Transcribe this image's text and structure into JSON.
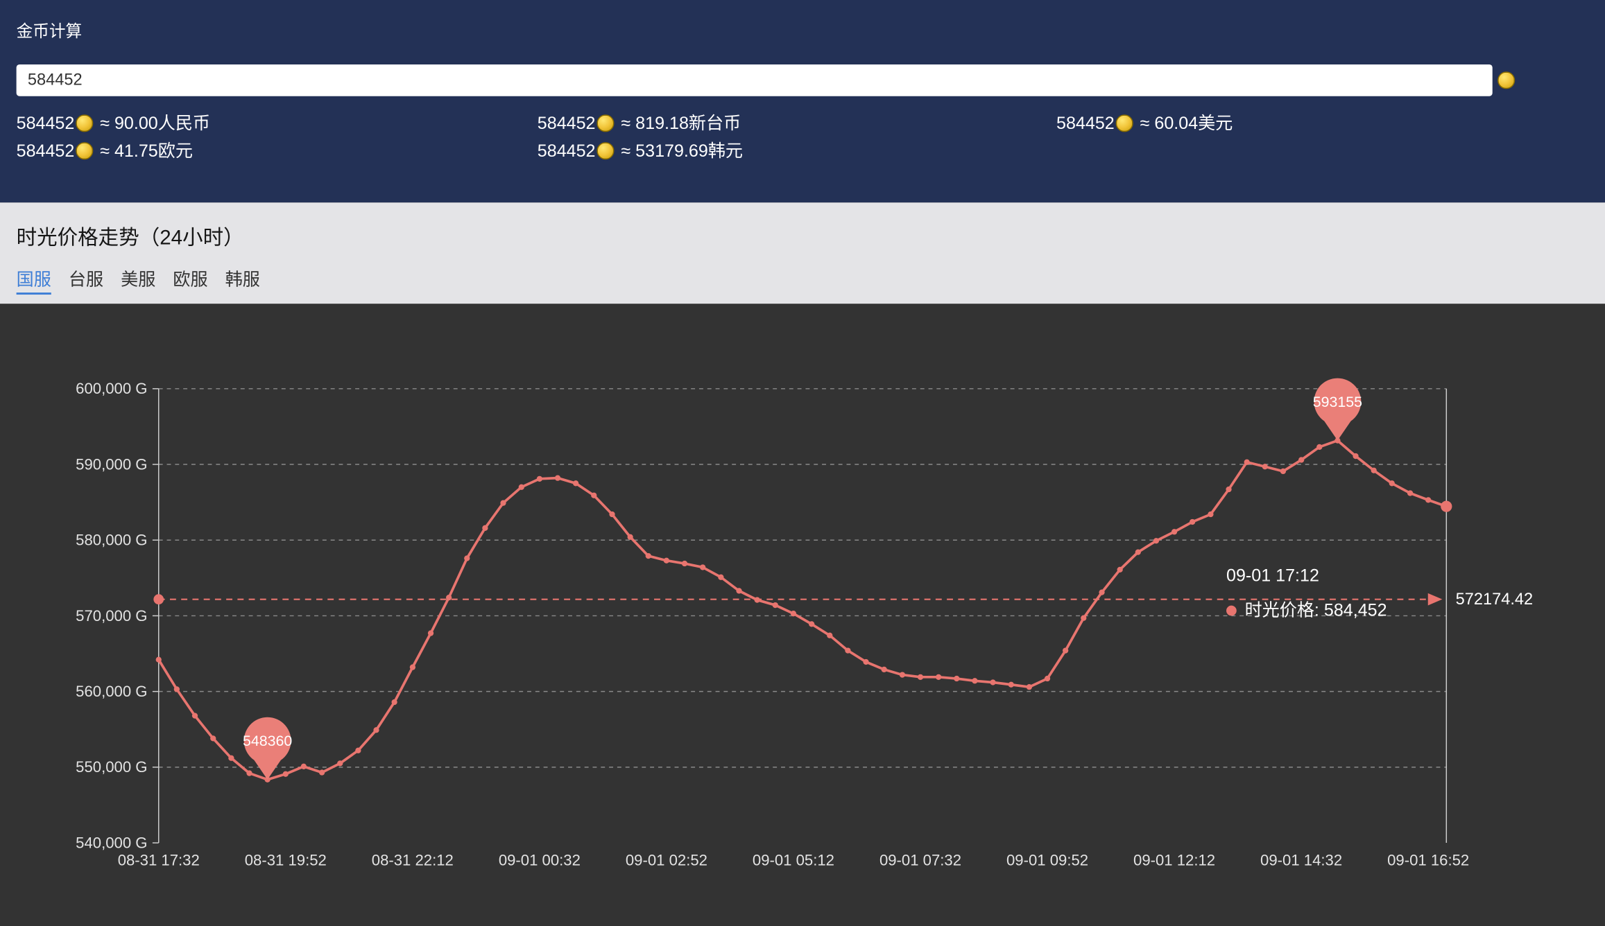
{
  "calculator": {
    "title": "金币计算",
    "input_value": "584452",
    "conversions": [
      {
        "amount": "584452",
        "result": "≈ 90.00人民币"
      },
      {
        "amount": "584452",
        "result": "≈ 819.18新台币"
      },
      {
        "amount": "584452",
        "result": "≈ 60.04美元"
      },
      {
        "amount": "584452",
        "result": "≈ 41.75欧元"
      },
      {
        "amount": "584452",
        "result": "≈ 53179.69韩元"
      }
    ]
  },
  "trend": {
    "title": "时光价格走势（24小时）",
    "tabs": [
      {
        "label": "国服",
        "active": true
      },
      {
        "label": "台服",
        "active": false
      },
      {
        "label": "美服",
        "active": false
      },
      {
        "label": "欧服",
        "active": false
      },
      {
        "label": "韩服",
        "active": false
      }
    ]
  },
  "chart_data": {
    "type": "line",
    "series_name": "时光价格",
    "unit": "G",
    "ylim": [
      540000,
      600000
    ],
    "y_ticks": [
      540000,
      550000,
      560000,
      570000,
      580000,
      590000,
      600000
    ],
    "x_tick_labels": [
      "08-31 17:32",
      "08-31 19:52",
      "08-31 22:12",
      "09-01 00:32",
      "09-01 02:52",
      "09-01 05:12",
      "09-01 07:32",
      "09-01 09:52",
      "09-01 12:12",
      "09-01 14:32",
      "09-01 16:52"
    ],
    "x_tick_interval_minutes": 140,
    "step_minutes": 20,
    "total_minutes": 1420,
    "values": [
      564200,
      560300,
      556800,
      553800,
      551200,
      549200,
      548360,
      549100,
      550100,
      549300,
      550500,
      552200,
      554900,
      558600,
      563200,
      567700,
      572400,
      577600,
      581600,
      584900,
      587000,
      588100,
      588200,
      587500,
      585900,
      583400,
      580400,
      577900,
      577300,
      576900,
      576400,
      575100,
      573300,
      572100,
      571400,
      570300,
      568900,
      567400,
      565400,
      563900,
      562900,
      562200,
      561900,
      561900,
      561700,
      561400,
      561200,
      560900,
      560600,
      561700,
      565400,
      569700,
      573100,
      576100,
      578400,
      579900,
      581100,
      582400,
      583400,
      586700,
      590300,
      589700,
      589100,
      590600,
      592300,
      593155,
      591100,
      589200,
      587500,
      586200,
      585300,
      584452
    ],
    "min_marker": {
      "index": 6,
      "value": 548360,
      "label": "548360"
    },
    "max_marker": {
      "index": 65,
      "value": 593155,
      "label": "593155"
    },
    "avg_line": {
      "value": 572174.42,
      "label": "572174.42"
    },
    "tooltip": {
      "time": "09-01 17:12",
      "text": "时光价格: 584,452"
    },
    "line_color": "#e8756f",
    "marker_color": "#ea7f78",
    "grid_color": "#8a8a8a",
    "axis_color": "#cfcfcf",
    "axis_label_color": "#e3e3e3",
    "legend_position": "none",
    "grid": true
  }
}
